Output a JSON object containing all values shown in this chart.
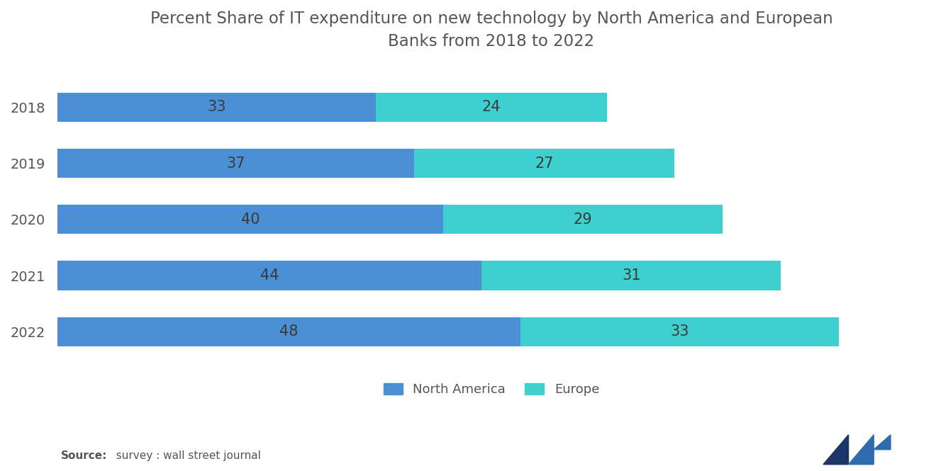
{
  "title": "Percent Share of IT expenditure on new technology by North America and European\nBanks from 2018 to 2022",
  "years": [
    "2018",
    "2019",
    "2020",
    "2021",
    "2022"
  ],
  "north_america": [
    33,
    37,
    40,
    44,
    48
  ],
  "europe": [
    24,
    27,
    29,
    31,
    33
  ],
  "north_america_color": "#4B8FD4",
  "europe_color": "#3ECFCF",
  "background_color": "#FFFFFF",
  "bar_height": 0.52,
  "title_fontsize": 16.5,
  "label_fontsize": 15,
  "tick_fontsize": 14,
  "legend_fontsize": 13,
  "source_bold": "Source:",
  "source_rest": "  survey : wall street journal",
  "legend_labels": [
    "North America",
    "Europe"
  ],
  "xlim": [
    0,
    90
  ],
  "text_color": "#555555",
  "bar_text_color": "#3a3a3a"
}
